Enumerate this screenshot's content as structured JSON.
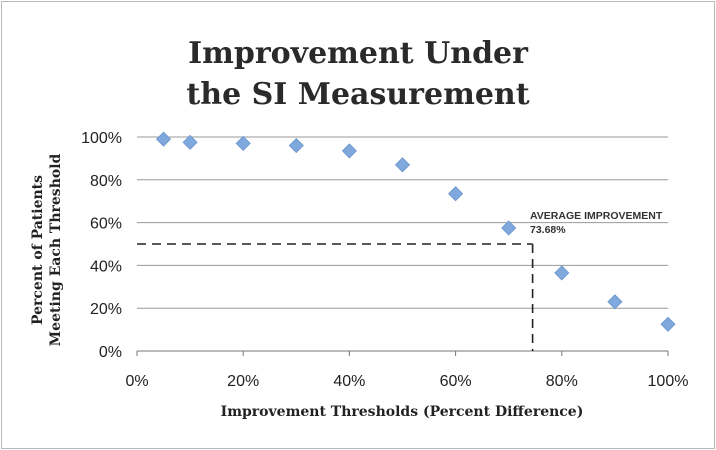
{
  "chart_data": {
    "type": "scatter",
    "title_lines": [
      "Improvement Under",
      "the SI Measurement"
    ],
    "xlabel": "Improvement Thresholds (Percent Difference)",
    "ylabel_lines": [
      "Percent of Patients",
      "Meeting Each Threshold"
    ],
    "xlim": [
      0,
      100
    ],
    "ylim": [
      0,
      100
    ],
    "x_ticks": [
      "0%",
      "20%",
      "40%",
      "60%",
      "80%",
      "100%"
    ],
    "y_ticks": [
      "0%",
      "20%",
      "40%",
      "60%",
      "80%",
      "100%"
    ],
    "grid": "horizontal",
    "marker_color": "#7fa8dc",
    "series": [
      {
        "x": [
          5,
          10,
          20,
          30,
          40,
          50,
          60,
          70,
          80,
          90,
          100
        ],
        "y": [
          99,
          97.5,
          97,
          96,
          93.5,
          87,
          73.5,
          57.5,
          36.5,
          23,
          12.5
        ]
      }
    ],
    "annotation": {
      "label": "AVERAGE IMPROVEMENT",
      "value": "73.68%",
      "x": 74.5,
      "y": 50
    }
  }
}
